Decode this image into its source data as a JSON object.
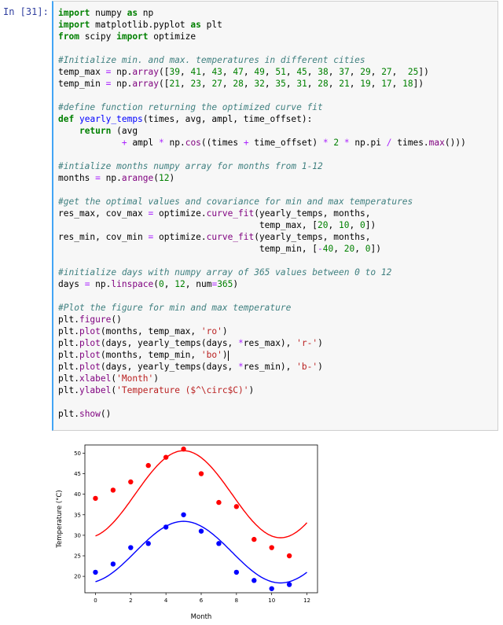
{
  "cell": {
    "prompt": "In [31]:",
    "lines": [
      "import numpy as np",
      "import matplotlib.pyplot as plt",
      "from scipy import optimize",
      "",
      "#Initialize min. and max. temperatures in different cities",
      "temp_max = np.array([39, 41, 43, 47, 49, 51, 45, 38, 37, 29, 27,  25])",
      "temp_min = np.array([21, 23, 27, 28, 32, 35, 31, 28, 21, 19, 17, 18])",
      "",
      "#define function returning the optimized curve fit",
      "def yearly_temps(times, avg, ampl, time_offset):",
      "    return (avg",
      "            + ampl * np.cos((times + time_offset) * 2 * np.pi / times.max()))",
      "",
      "#intialize months numpy array for months from 1-12",
      "months = np.arange(12)",
      "",
      "#get the optimal values and covariance for min and max temperatures",
      "res_max, cov_max = optimize.curve_fit(yearly_temps, months,",
      "                                      temp_max, [20, 10, 0])",
      "res_min, cov_min = optimize.curve_fit(yearly_temps, months,",
      "                                      temp_min, [-40, 20, 0])",
      "",
      "#initialize days with numpy array of 365 values between 0 to 12",
      "days = np.linspace(0, 12, num=365)",
      "",
      "#Plot the figure for min and max temperature",
      "plt.figure()",
      "plt.plot(months, temp_max, 'ro')",
      "plt.plot(days, yearly_temps(days, *res_max), 'r-')",
      "plt.plot(months, temp_min, 'bo')",
      "plt.plot(days, yearly_temps(days, *res_min), 'b-')",
      "plt.xlabel('Month')",
      "plt.ylabel('Temperature ($^\\circ$C)')",
      "",
      "plt.show()"
    ]
  },
  "chart_data": {
    "type": "scatter",
    "xlabel": "Month",
    "ylabel": "Temperature (°C)",
    "xlim": [
      -0.6,
      12.6
    ],
    "ylim": [
      16,
      52
    ],
    "xticks": [
      0,
      2,
      4,
      6,
      8,
      10,
      12
    ],
    "yticks": [
      20,
      25,
      30,
      35,
      40,
      45,
      50
    ],
    "grid": false,
    "series": [
      {
        "color": "#ff0000",
        "points_x": [
          0,
          1,
          2,
          3,
          4,
          5,
          6,
          7,
          8,
          9,
          10,
          11
        ],
        "points_y": [
          39,
          41,
          43,
          47,
          49,
          51,
          45,
          38,
          37,
          29,
          27,
          25
        ],
        "fit": {
          "avg": 40.0,
          "ampl": 10.6,
          "peak_x": 5.0
        }
      },
      {
        "color": "#0000ff",
        "points_x": [
          0,
          1,
          2,
          3,
          4,
          5,
          6,
          7,
          8,
          9,
          10,
          11
        ],
        "points_y": [
          21,
          23,
          27,
          28,
          32,
          35,
          31,
          28,
          21,
          19,
          17,
          18
        ],
        "fit": {
          "avg": 25.9,
          "ampl": 7.5,
          "peak_x": 5.0
        }
      }
    ]
  }
}
